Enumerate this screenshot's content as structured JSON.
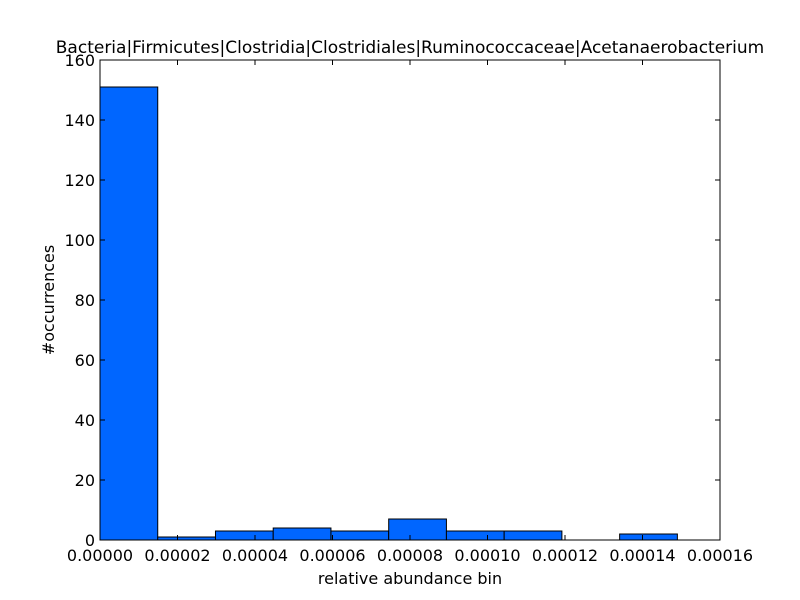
{
  "chart_data": {
    "type": "bar",
    "title": "Bacteria|Firmicutes|Clostridia|Clostridiales|Ruminococcaceae|Acetanaerobacterium",
    "xlabel": "relative abundance bin",
    "ylabel": "#occurrences",
    "xlim": [
      0,
      0.00016
    ],
    "ylim": [
      0,
      160
    ],
    "bin_width": 1.49e-05,
    "bins": [
      {
        "x0": 0.0,
        "value": 151
      },
      {
        "x0": 1.49e-05,
        "value": 1
      },
      {
        "x0": 2.98e-05,
        "value": 3
      },
      {
        "x0": 4.47e-05,
        "value": 4
      },
      {
        "x0": 5.96e-05,
        "value": 3
      },
      {
        "x0": 7.45e-05,
        "value": 7
      },
      {
        "x0": 8.94e-05,
        "value": 3
      },
      {
        "x0": 0.0001043,
        "value": 3
      },
      {
        "x0": 0.0001192,
        "value": 0
      },
      {
        "x0": 0.0001341,
        "value": 2
      }
    ],
    "xticks": [
      "0.00000",
      "0.00002",
      "0.00004",
      "0.00006",
      "0.00008",
      "0.00010",
      "0.00012",
      "0.00014",
      "0.00016"
    ],
    "yticks": [
      "0",
      "20",
      "40",
      "60",
      "80",
      "100",
      "120",
      "140",
      "160"
    ],
    "bar_color": "#0066ff",
    "edge_color": "#000000",
    "grid": false
  }
}
